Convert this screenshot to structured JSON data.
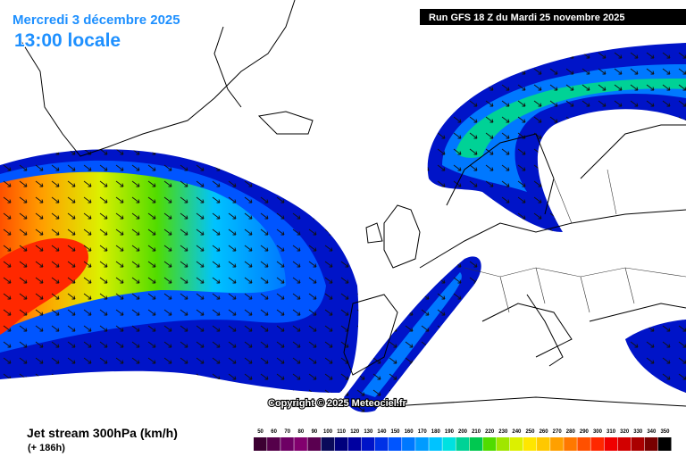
{
  "header": {
    "date": "Mercredi 3 décembre 2025",
    "time": "13:00 locale",
    "run": "Run GFS 18 Z du Mardi 25 novembre 2025"
  },
  "copyright": "Copyright © 2025 Meteociel.fr",
  "legend": {
    "title": "Jet stream 300hPa (km/h)",
    "lead": "(+ 186h)",
    "scale": [
      50,
      60,
      70,
      80,
      90,
      100,
      110,
      120,
      130,
      140,
      150,
      160,
      170,
      180,
      190,
      200,
      210,
      220,
      230,
      240,
      250,
      260,
      270,
      280,
      290,
      300,
      310,
      320,
      330,
      340,
      350
    ],
    "colors": [
      "#3c0032",
      "#55004a",
      "#6e0064",
      "#82006e",
      "#5a0050",
      "#0a0a5a",
      "#00007d",
      "#0000a0",
      "#0014c8",
      "#0032e6",
      "#0055ff",
      "#0078ff",
      "#009bff",
      "#00c3ff",
      "#00e1e1",
      "#00d296",
      "#00c850",
      "#50dc00",
      "#a0e600",
      "#dcf000",
      "#ffe600",
      "#ffc800",
      "#ffa000",
      "#ff7800",
      "#ff5000",
      "#ff2800",
      "#f00000",
      "#d20000",
      "#aa0000",
      "#780000",
      "#000000"
    ]
  }
}
